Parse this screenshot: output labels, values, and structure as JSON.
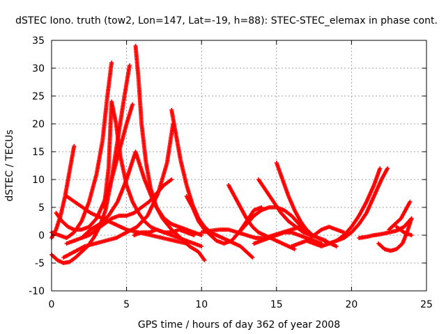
{
  "chart_data": {
    "type": "scatter",
    "title": "dSTEC Iono. truth (tow2, Lon=147, Lat=-19, h=88): STEC-STEC_elemax in phase cont.",
    "xlabel": "GPS time / hours of day 362 of year 2008",
    "ylabel": "dSTEC  / TECUs",
    "xlim": [
      0,
      25
    ],
    "ylim": [
      -10,
      35
    ],
    "xticks": [
      0,
      5,
      10,
      15,
      20,
      25
    ],
    "yticks": [
      -10,
      -5,
      0,
      5,
      10,
      15,
      20,
      25,
      30,
      35
    ],
    "grid": true,
    "marker": "plus",
    "color": "#ff0000",
    "series": [
      {
        "x": [
          0.0,
          0.4,
          0.8,
          1.2,
          1.6,
          2.0,
          2.4,
          2.8,
          3.2,
          3.6,
          4.0,
          4.4,
          4.8,
          5.2
        ],
        "y": [
          -3.5,
          -4.5,
          -5.0,
          -4.8,
          -4.0,
          -3.0,
          -2.0,
          -0.5,
          1.5,
          4.5,
          10.0,
          17.0,
          24.0,
          30.5
        ]
      },
      {
        "x": [
          0.0,
          0.3,
          0.6,
          0.9,
          1.2,
          1.5
        ],
        "y": [
          -0.5,
          1.0,
          3.5,
          7.0,
          11.5,
          16.0
        ]
      },
      {
        "x": [
          0.0,
          0.5,
          1.0,
          1.5,
          2.0,
          2.5,
          3.0,
          3.4,
          3.7,
          4.0
        ],
        "y": [
          0.5,
          0.0,
          -0.5,
          0.5,
          2.5,
          6.0,
          11.0,
          17.0,
          24.5,
          31.0
        ]
      },
      {
        "x": [
          0.3,
          0.7,
          1.1,
          1.5,
          2.0,
          2.5,
          3.0,
          3.5,
          4.0,
          4.5,
          5.0,
          5.4
        ],
        "y": [
          4.0,
          2.5,
          1.5,
          1.0,
          1.0,
          1.5,
          3.0,
          6.0,
          10.0,
          15.0,
          20.0,
          23.5
        ]
      },
      {
        "x": [
          0.8,
          1.5,
          2.2,
          2.9,
          3.6,
          4.3,
          5.0,
          5.7,
          6.4,
          7.1,
          7.7,
          8.1
        ],
        "y": [
          -4.0,
          -3.0,
          -2.0,
          -1.5,
          -1.0,
          -0.5,
          0.5,
          1.5,
          3.5,
          7.5,
          13.0,
          20.0
        ]
      },
      {
        "x": [
          1.0,
          1.5,
          2.0,
          2.5,
          3.0,
          3.5,
          4.0,
          4.5,
          5.0,
          5.5,
          6.0,
          6.5,
          7.0,
          7.5,
          8.0
        ],
        "y": [
          -1.5,
          -1.0,
          -0.5,
          0.0,
          1.0,
          2.0,
          3.0,
          3.5,
          3.5,
          4.0,
          5.0,
          6.0,
          7.5,
          9.0,
          10.0
        ]
      },
      {
        "x": [
          1.0,
          1.8,
          2.6,
          3.4,
          4.2,
          5.0,
          5.8,
          6.6,
          7.4,
          8.2,
          9.0
        ],
        "y": [
          7.0,
          5.5,
          4.0,
          3.0,
          2.0,
          1.0,
          0.5,
          0.0,
          -0.5,
          -1.0,
          -1.5
        ]
      },
      {
        "x": [
          2.0,
          2.6,
          3.2,
          3.8,
          4.4,
          5.0,
          5.6,
          6.2,
          6.8,
          7.4,
          8.0,
          8.6,
          9.2,
          9.8,
          10.2
        ],
        "y": [
          -0.5,
          1.0,
          2.0,
          3.5,
          6.0,
          10.0,
          15.0,
          10.0,
          6.0,
          3.0,
          1.0,
          -0.5,
          -2.0,
          -3.0,
          -4.5
        ]
      },
      {
        "x": [
          3.5,
          3.8,
          4.0,
          4.3,
          4.6,
          5.0,
          5.4,
          5.8,
          6.2,
          6.6,
          7.0,
          7.5,
          8.0,
          8.5,
          9.0,
          9.5,
          10.0
        ],
        "y": [
          5.0,
          12.0,
          24.0,
          20.0,
          14.0,
          9.0,
          6.0,
          4.0,
          2.5,
          1.5,
          1.0,
          0.5,
          0.0,
          -0.5,
          -1.0,
          -1.5,
          -2.0
        ]
      },
      {
        "x": [
          5.6,
          5.8,
          6.0,
          6.3,
          6.6,
          7.0,
          7.5,
          8.0,
          8.5,
          9.0,
          9.5,
          10.0
        ],
        "y": [
          34.0,
          28.0,
          20.0,
          13.0,
          8.5,
          5.0,
          3.0,
          2.0,
          1.5,
          1.0,
          0.5,
          0.0
        ]
      },
      {
        "x": [
          5.5,
          6.0,
          6.5,
          7.0,
          7.5,
          8.0,
          8.5,
          9.0,
          9.5
        ],
        "y": [
          0.0,
          0.5,
          0.5,
          1.0,
          0.5,
          0.5,
          1.0,
          0.5,
          0.0
        ]
      },
      {
        "x": [
          8.0,
          8.3,
          8.6,
          9.0,
          9.4,
          9.8,
          10.2,
          10.6,
          11.0,
          11.4,
          11.8,
          12.2,
          12.6,
          13.0,
          13.4
        ],
        "y": [
          22.5,
          18.0,
          13.5,
          9.0,
          5.5,
          3.0,
          1.5,
          0.5,
          0.0,
          -0.5,
          -1.0,
          -1.5,
          -2.0,
          -3.0,
          -4.0
        ]
      },
      {
        "x": [
          9.0,
          9.4,
          9.8,
          10.2,
          10.6,
          11.0,
          11.5,
          12.0,
          12.5,
          13.0,
          13.5,
          14.0
        ],
        "y": [
          7.0,
          5.0,
          2.5,
          1.0,
          0.0,
          -1.0,
          -1.5,
          -1.0,
          0.5,
          2.5,
          4.5,
          5.0
        ]
      },
      {
        "x": [
          10.0,
          10.6,
          11.2,
          11.8,
          12.4,
          13.0,
          13.6,
          14.2,
          14.8,
          15.4,
          16.0,
          16.6
        ],
        "y": [
          0.5,
          0.8,
          1.0,
          1.0,
          0.5,
          0.0,
          -0.5,
          -0.5,
          0.0,
          0.5,
          1.0,
          1.5
        ]
      },
      {
        "x": [
          11.8,
          12.2,
          12.6,
          13.0,
          13.4,
          13.8,
          14.2,
          14.6,
          15.0,
          15.4,
          15.8,
          16.2
        ],
        "y": [
          9.0,
          7.0,
          5.0,
          3.0,
          1.5,
          0.5,
          0.0,
          -0.5,
          -1.0,
          -1.5,
          -2.0,
          -2.5
        ]
      },
      {
        "x": [
          12.5,
          13.0,
          13.5,
          14.0,
          14.5,
          15.0,
          15.5,
          16.0,
          16.5,
          17.0
        ],
        "y": [
          0.5,
          2.0,
          3.5,
          4.5,
          5.0,
          5.0,
          4.5,
          3.5,
          2.0,
          0.5
        ]
      },
      {
        "x": [
          13.5,
          14.0,
          14.5,
          15.0,
          15.5,
          16.0,
          16.5,
          17.0,
          17.5,
          18.0
        ],
        "y": [
          -1.5,
          -1.0,
          -0.5,
          0.0,
          0.5,
          0.5,
          0.0,
          -0.5,
          -1.0,
          -1.5
        ]
      },
      {
        "x": [
          13.8,
          14.3,
          14.8,
          15.3,
          15.8,
          16.3,
          16.8,
          17.3,
          17.8,
          18.3
        ],
        "y": [
          10.0,
          8.0,
          6.0,
          4.0,
          2.5,
          1.5,
          0.5,
          0.0,
          -0.5,
          -1.0
        ]
      },
      {
        "x": [
          15.0,
          15.4,
          15.8,
          16.2,
          16.6,
          17.0,
          17.4,
          17.8,
          18.2,
          18.6,
          19.0
        ],
        "y": [
          13.0,
          10.0,
          7.0,
          4.5,
          2.5,
          1.0,
          0.0,
          -0.5,
          -1.0,
          -1.5,
          -2.0
        ]
      },
      {
        "x": [
          16.0,
          16.5,
          17.0,
          17.5,
          18.0,
          18.5,
          19.0,
          19.5
        ],
        "y": [
          -2.0,
          -1.5,
          -1.0,
          0.0,
          1.0,
          1.5,
          1.0,
          0.5
        ]
      },
      {
        "x": [
          17.0,
          17.5,
          18.0,
          18.5,
          19.0,
          19.5,
          20.0,
          20.5,
          21.0,
          21.5,
          22.0,
          22.4
        ],
        "y": [
          -1.0,
          -1.5,
          -2.0,
          -1.5,
          -1.0,
          -0.5,
          0.5,
          2.0,
          4.0,
          7.0,
          10.0,
          12.0
        ]
      },
      {
        "x": [
          18.5,
          19.0,
          19.5,
          20.0,
          20.5,
          21.0,
          21.5,
          21.9
        ],
        "y": [
          -1.5,
          -1.0,
          0.0,
          1.5,
          3.5,
          6.0,
          9.0,
          12.0
        ]
      },
      {
        "x": [
          20.5,
          21.0,
          21.5,
          22.0,
          22.5,
          23.0,
          23.5,
          24.0
        ],
        "y": [
          -0.5,
          -0.3,
          0.0,
          0.2,
          0.5,
          0.8,
          1.5,
          3.0
        ]
      },
      {
        "x": [
          21.8,
          22.2,
          22.6,
          23.0,
          23.4,
          23.7,
          24.0
        ],
        "y": [
          -1.5,
          -2.5,
          -2.8,
          -2.5,
          -1.5,
          0.5,
          3.0
        ]
      },
      {
        "x": [
          22.5,
          22.9,
          23.3,
          23.6,
          23.9
        ],
        "y": [
          1.0,
          2.0,
          3.0,
          4.5,
          6.0
        ]
      },
      {
        "x": [
          23.0,
          23.5,
          24.0
        ],
        "y": [
          1.5,
          0.5,
          0.0
        ]
      }
    ]
  }
}
